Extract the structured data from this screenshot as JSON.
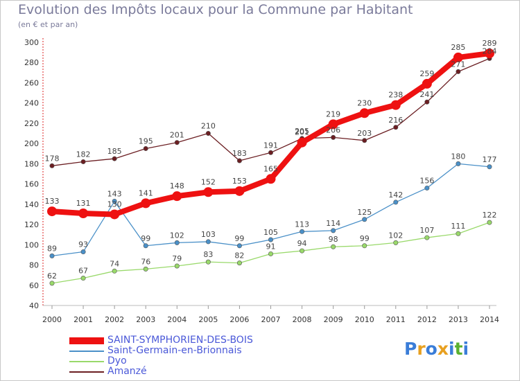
{
  "title": "Evolution des Impôts locaux pour la Commune par Habitant",
  "subtitle": "(en € et par an)",
  "logo": {
    "text": "Proxiti",
    "colors": [
      "#3a7dd8",
      "#e8a020",
      "#3a7dd8",
      "#e8a020",
      "#3a7dd8",
      "#5ab030",
      "#3a7dd8"
    ]
  },
  "chart_data": {
    "type": "line",
    "x": [
      2000,
      2001,
      2002,
      2003,
      2004,
      2005,
      2006,
      2007,
      2008,
      2009,
      2010,
      2011,
      2012,
      2013,
      2014
    ],
    "ylim": [
      40,
      300
    ],
    "yticks": [
      40,
      60,
      80,
      100,
      120,
      140,
      160,
      180,
      200,
      220,
      240,
      260,
      280,
      300
    ],
    "grid": false,
    "legend_position": "bottom",
    "series": [
      {
        "name": "Amanzé",
        "color": "#6b1e22",
        "values": [
          178,
          182,
          185,
          195,
          201,
          210,
          183,
          191,
          205,
          206,
          203,
          216,
          241,
          271,
          284
        ]
      },
      {
        "name": "Dyo",
        "color": "#99d96a",
        "values": [
          62,
          67,
          74,
          76,
          79,
          83,
          82,
          91,
          94,
          98,
          99,
          102,
          107,
          111,
          122
        ]
      },
      {
        "name": "Saint-Germain-en-Brionnais",
        "color": "#4a90c8",
        "values": [
          89,
          93,
          143,
          99,
          102,
          103,
          99,
          105,
          113,
          114,
          125,
          142,
          156,
          180,
          177
        ]
      },
      {
        "name": "SAINT-SYMPHORIEN-DES-BOIS",
        "color": "#ee1111",
        "values": [
          133,
          131,
          130,
          141,
          148,
          152,
          153,
          165,
          201,
          219,
          230,
          238,
          259,
          285,
          289
        ]
      }
    ]
  }
}
